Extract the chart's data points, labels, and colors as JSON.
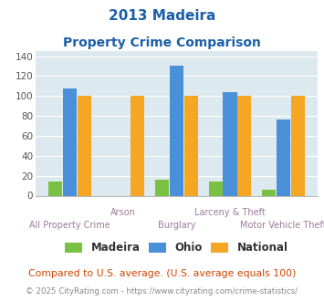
{
  "title_line1": "2013 Madeira",
  "title_line2": "Property Crime Comparison",
  "categories": [
    "All Property Crime",
    "Arson",
    "Burglary",
    "Larceny & Theft",
    "Motor Vehicle Theft"
  ],
  "madeira": [
    14,
    0,
    16,
    14,
    6
  ],
  "ohio": [
    108,
    0,
    130,
    104,
    76
  ],
  "national": [
    100,
    100,
    100,
    100,
    100
  ],
  "arson_ohio": 0,
  "bar_colors": {
    "madeira": "#7ac143",
    "ohio": "#4a90d9",
    "national": "#f5a623"
  },
  "ylim": [
    0,
    145
  ],
  "yticks": [
    0,
    20,
    40,
    60,
    80,
    100,
    120,
    140
  ],
  "background_color": "#dce9ef",
  "title_color": "#1a5fa8",
  "label_color": "#9b7b9b",
  "footer_text": "Compared to U.S. average. (U.S. average equals 100)",
  "footer_color": "#cc4400",
  "credit_text": "© 2025 CityRating.com - https://www.cityrating.com/crime-statistics/",
  "credit_color": "#888888",
  "legend_labels": [
    "Madeira",
    "Ohio",
    "National"
  ],
  "row1_indices": [
    1,
    3
  ],
  "row1_labels": [
    "Arson",
    "Larceny & Theft"
  ],
  "row2_indices": [
    0,
    2,
    4
  ],
  "row2_labels": [
    "All Property Crime",
    "Burglary",
    "Motor Vehicle Theft"
  ]
}
